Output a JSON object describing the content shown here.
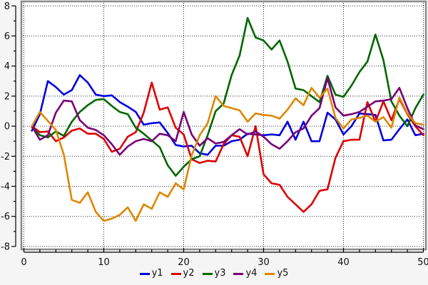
{
  "chart_data": {
    "type": "line",
    "title": "",
    "xlabel": "",
    "ylabel": "",
    "xlim": [
      -0.3,
      50.3
    ],
    "ylim": [
      -8.25,
      8.3
    ],
    "grid": "dotted",
    "legend_position": "bottom-center",
    "x_tick_values": [
      0,
      10,
      20,
      30,
      40,
      50
    ],
    "x_tick_labels": [
      "0",
      "10",
      "20",
      "30",
      "40",
      "50"
    ],
    "x_minor_tick_step": 2,
    "y_tick_values": [
      8,
      6,
      4,
      2,
      0,
      -2,
      -4,
      -6,
      -8
    ],
    "y_tick_labels": [
      "8",
      "6",
      "4",
      "2",
      "0",
      "-2",
      "-4",
      "-6",
      "-8"
    ],
    "y_minor_tick_step": 1,
    "x": [
      1,
      2,
      3,
      4,
      5,
      6,
      7,
      8,
      9,
      10,
      11,
      12,
      13,
      14,
      15,
      16,
      17,
      18,
      19,
      20,
      21,
      22,
      23,
      24,
      25,
      26,
      27,
      28,
      29,
      30,
      31,
      32,
      33,
      34,
      35,
      36,
      37,
      38,
      39,
      40,
      41,
      42,
      43,
      44,
      45,
      46,
      47,
      48,
      49,
      50
    ],
    "series": [
      {
        "name": "y1",
        "color": "#0000dd",
        "values": [
          -0.3,
          0.8,
          3.0,
          2.6,
          2.1,
          2.4,
          3.4,
          2.9,
          2.1,
          2.0,
          2.05,
          1.6,
          1.3,
          0.95,
          0.1,
          0.2,
          0.25,
          -0.45,
          -1.25,
          -1.35,
          -1.3,
          -1.8,
          -1.9,
          -1.3,
          -1.3,
          -1.0,
          -0.9,
          -0.5,
          -0.55,
          -0.6,
          -0.55,
          -0.6,
          0.3,
          -0.9,
          0.3,
          -1.0,
          -1.0,
          0.9,
          0.45,
          -0.55,
          0.0,
          0.85,
          0.8,
          0.75,
          -0.95,
          -0.9,
          -0.2,
          0.45,
          -0.6,
          -0.5
        ]
      },
      {
        "name": "y2",
        "color": "#dd0000",
        "values": [
          0.0,
          -0.4,
          -0.35,
          -1.0,
          -0.75,
          -0.3,
          -0.15,
          -0.5,
          -0.5,
          -0.85,
          -1.7,
          -1.5,
          -0.7,
          -0.4,
          0.9,
          2.9,
          1.1,
          1.25,
          -0.1,
          -0.55,
          -2.2,
          -2.45,
          -2.3,
          -2.35,
          -1.2,
          -0.6,
          -0.7,
          -2.0,
          0.0,
          -3.2,
          -3.8,
          -3.9,
          -4.7,
          -5.2,
          -5.7,
          -5.2,
          -4.3,
          -4.2,
          -2.1,
          -1.0,
          -0.9,
          -0.9,
          1.6,
          0.3,
          1.65,
          0.4,
          1.8,
          0.8,
          0.0,
          -0.6
        ]
      },
      {
        "name": "y3",
        "color": "#006600",
        "values": [
          -0.05,
          -0.6,
          -0.75,
          -0.35,
          -0.65,
          0.3,
          0.95,
          1.4,
          1.75,
          1.8,
          1.35,
          0.95,
          0.8,
          -0.1,
          -0.5,
          -0.95,
          -1.4,
          -2.6,
          -3.3,
          -2.7,
          -2.2,
          -2.0,
          -0.6,
          1.0,
          1.5,
          3.4,
          4.7,
          7.2,
          5.9,
          5.7,
          5.1,
          5.7,
          4.3,
          2.5,
          2.4,
          2.0,
          1.6,
          3.35,
          2.1,
          1.95,
          2.7,
          3.6,
          4.3,
          6.1,
          4.4,
          1.65,
          0.7,
          0.0,
          1.2,
          2.1
        ]
      },
      {
        "name": "y4",
        "color": "#770077",
        "values": [
          0.0,
          -0.9,
          -0.6,
          0.9,
          1.7,
          1.65,
          0.4,
          -0.1,
          -0.25,
          -0.6,
          -1.2,
          -1.9,
          -1.35,
          -1.0,
          -0.85,
          -1.0,
          -0.5,
          -0.6,
          -1.0,
          0.95,
          -0.55,
          -1.3,
          -0.8,
          -1.15,
          -1.05,
          -0.6,
          -0.2,
          -0.55,
          -0.35,
          -0.7,
          -1.2,
          -1.5,
          -1.0,
          -0.4,
          -0.15,
          0.7,
          1.2,
          3.2,
          1.25,
          0.7,
          0.8,
          0.95,
          1.3,
          1.65,
          1.7,
          1.8,
          2.55,
          1.2,
          0.05,
          -0.2
        ]
      },
      {
        "name": "y5",
        "color": "#dd8800",
        "values": [
          0.0,
          0.95,
          0.35,
          -0.25,
          -1.9,
          -4.9,
          -5.1,
          -4.4,
          -5.7,
          -6.3,
          -6.15,
          -5.9,
          -5.4,
          -6.3,
          -5.2,
          -5.5,
          -4.4,
          -4.7,
          -3.8,
          -4.2,
          -1.95,
          -0.6,
          0.2,
          2.0,
          1.35,
          1.2,
          1.05,
          0.3,
          0.85,
          0.75,
          0.7,
          0.5,
          1.1,
          1.85,
          1.4,
          2.55,
          1.9,
          2.5,
          0.55,
          -0.15,
          0.45,
          0.55,
          0.7,
          0.3,
          0.6,
          -0.1,
          1.9,
          0.85,
          0.2,
          0.1
        ]
      }
    ],
    "style": {
      "plot_background": "#ffffff",
      "outer_background": "#f5f5f5",
      "frame_color": "#8a8a8a",
      "grid_color": "#2a2a2a",
      "axis_color": "#000000",
      "tick_label_color": "#111111"
    }
  }
}
